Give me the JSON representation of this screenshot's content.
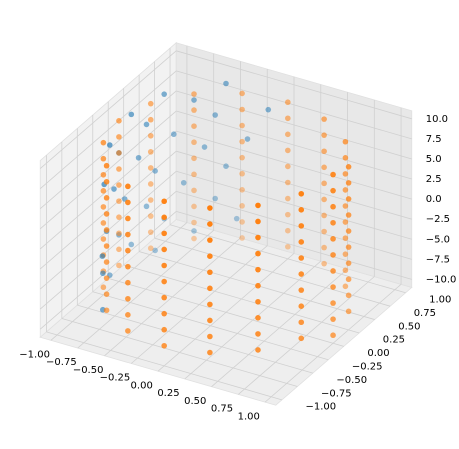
{
  "chart_data": {
    "type": "scatter3d",
    "xlim": [
      -1.1,
      1.1
    ],
    "ylim": [
      -1.1,
      1.1
    ],
    "zlim": [
      -11,
      11
    ],
    "xticks": [
      {
        "value": -1,
        "label": "−1.00"
      },
      {
        "value": -0.75,
        "label": "−0.75"
      },
      {
        "value": -0.5,
        "label": "−0.50"
      },
      {
        "value": -0.25,
        "label": "−0.25"
      },
      {
        "value": 0,
        "label": "0.00"
      },
      {
        "value": 0.25,
        "label": "0.25"
      },
      {
        "value": 0.5,
        "label": "0.50"
      },
      {
        "value": 0.75,
        "label": "0.75"
      },
      {
        "value": 1,
        "label": "1.00"
      }
    ],
    "yticks": [
      {
        "value": -1,
        "label": "−1.00"
      },
      {
        "value": -0.75,
        "label": "−0.75"
      },
      {
        "value": -0.5,
        "label": "−0.50"
      },
      {
        "value": -0.25,
        "label": "−0.25"
      },
      {
        "value": 0,
        "label": "0.00"
      },
      {
        "value": 0.25,
        "label": "0.25"
      },
      {
        "value": 0.5,
        "label": "0.50"
      },
      {
        "value": 0.75,
        "label": "0.75"
      },
      {
        "value": 1,
        "label": "1.00"
      }
    ],
    "zticks": [
      {
        "value": -10,
        "label": "−10.0"
      },
      {
        "value": -7.5,
        "label": "−7.5"
      },
      {
        "value": -5,
        "label": "−5.0"
      },
      {
        "value": -2.5,
        "label": "−2.5"
      },
      {
        "value": 0,
        "label": "0.0"
      },
      {
        "value": 2.5,
        "label": "2.5"
      },
      {
        "value": 5,
        "label": "5.0"
      },
      {
        "value": 7.5,
        "label": "7.5"
      },
      {
        "value": 10,
        "label": "10.0"
      }
    ],
    "grid": true,
    "series": [
      {
        "color": "#1f77b4",
        "x": [
          -0.866,
          -0.5,
          -0.985,
          -0.707,
          -0.985,
          -0.94,
          -0.574,
          -1,
          -0.819,
          -0.94,
          -0.966,
          -0.643,
          -0.996,
          -0.906,
          -0.5,
          -0.996,
          -0.766,
          -0.966,
          -0.94,
          -0.574,
          -1,
          -0.866,
          -0.906,
          -0.985,
          -0.707,
          -0.985,
          -0.906,
          -0.819,
          -0.342,
          -0.174,
          -0.866,
          -0.423
        ],
        "y": [
          0.5,
          0.866,
          0.174,
          0.707,
          -0.174,
          0.342,
          0.819,
          0,
          0.574,
          -0.342,
          0.259,
          0.766,
          -0.087,
          0.423,
          0.866,
          0.087,
          0.643,
          -0.259,
          0.342,
          0.819,
          0,
          0.5,
          -0.423,
          0.174,
          0.707,
          -0.174,
          0.423,
          -0.574,
          0.94,
          0.985,
          -0.5,
          0.906
        ],
        "z": [
          9.5,
          9.8,
          8.7,
          8,
          7.2,
          6.5,
          5.9,
          5,
          4.2,
          3.6,
          2.8,
          2,
          1.1,
          0.3,
          -0.5,
          -1.3,
          -2.1,
          -2.9,
          -3.7,
          -4.5,
          -5.2,
          -6,
          -6.8,
          -7.5,
          -8.3,
          -9,
          -9.6,
          -10,
          3,
          7,
          -4,
          -7
        ]
      },
      {
        "color": "#ff7f0e",
        "x": [
          1,
          0.924,
          0.707,
          0.383,
          0,
          -0.383,
          -0.707,
          -0.924,
          -1,
          -0.924,
          -0.707,
          -0.383,
          0,
          0.383,
          0.707,
          0.924,
          1,
          0.924,
          0.707,
          0.383,
          0,
          -0.383,
          -0.707,
          -0.924,
          -1,
          -0.924,
          -0.707,
          -0.383,
          0,
          0.383,
          0.707,
          0.924,
          1,
          0.924,
          0.707,
          0.383,
          0,
          -0.383,
          -0.707,
          -0.924,
          -1,
          -0.924,
          -0.707,
          -0.383,
          0,
          0.383,
          0.707,
          0.924,
          1,
          0.924,
          0.707,
          0.383,
          0,
          -0.383,
          -0.707,
          -0.924,
          -1,
          -0.924,
          -0.707,
          -0.383,
          0,
          0.383,
          0.707,
          0.924,
          1,
          0.924,
          0.707,
          0.383,
          0,
          -0.383,
          -0.707,
          -0.924,
          -1,
          -0.924,
          -0.707,
          -0.383,
          0,
          0.383,
          0.707,
          0.924,
          1,
          0.924,
          0.707,
          0.383,
          0,
          -0.383,
          -0.707,
          -0.924,
          -1,
          -0.924,
          -0.707,
          -0.383,
          0,
          0.383,
          0.707,
          0.924,
          1,
          0.924,
          0.707,
          0.383,
          0,
          -0.383,
          -0.707,
          -0.924,
          -1,
          -0.924,
          -0.707,
          -0.383,
          0,
          0.383,
          0.707,
          0.924,
          1,
          0.924,
          0.707,
          0.383,
          0,
          -0.383,
          -0.707,
          -0.924,
          -1,
          -0.924,
          -0.707,
          -0.383,
          0,
          0.383,
          0.707,
          0.924,
          1,
          0.924,
          0.707,
          0.383,
          0,
          -0.383,
          -0.707,
          -0.924,
          -1,
          -0.924,
          -0.707,
          -0.383,
          0,
          0.383,
          0.707,
          0.924,
          1,
          0.924,
          0.707,
          0.383,
          0,
          -0.383,
          -0.707,
          -0.924,
          -1,
          -0.924,
          -0.707,
          -0.383,
          0,
          0.383,
          0.707,
          0.924,
          1
        ],
        "y": [
          0,
          0.383,
          0.707,
          0.924,
          1,
          0.924,
          0.707,
          0.383,
          0,
          -0.383,
          -0.707,
          -0.924,
          -1,
          -0.924,
          -0.707,
          -0.383,
          0,
          0.383,
          0.707,
          0.924,
          1,
          0.924,
          0.707,
          0.383,
          0,
          -0.383,
          -0.707,
          -0.924,
          -1,
          -0.924,
          -0.707,
          -0.383,
          0,
          0.383,
          0.707,
          0.924,
          1,
          0.924,
          0.707,
          0.383,
          0,
          -0.383,
          -0.707,
          -0.924,
          -1,
          -0.924,
          -0.707,
          -0.383,
          0,
          0.383,
          0.707,
          0.924,
          1,
          0.924,
          0.707,
          0.383,
          0,
          -0.383,
          -0.707,
          -0.924,
          -1,
          -0.924,
          -0.707,
          -0.383,
          0,
          0.383,
          0.707,
          0.924,
          1,
          0.924,
          0.707,
          0.383,
          0,
          -0.383,
          -0.707,
          -0.924,
          -1,
          -0.924,
          -0.707,
          -0.383,
          0,
          0.383,
          0.707,
          0.924,
          1,
          0.924,
          0.707,
          0.383,
          0,
          -0.383,
          -0.707,
          -0.924,
          -1,
          -0.924,
          -0.707,
          -0.383,
          0,
          0.383,
          0.707,
          0.924,
          1,
          0.924,
          0.707,
          0.383,
          0,
          -0.383,
          -0.707,
          -0.924,
          -1,
          -0.924,
          -0.707,
          -0.383,
          0,
          0.383,
          0.707,
          0.924,
          1,
          0.924,
          0.707,
          0.383,
          0,
          -0.383,
          -0.707,
          -0.924,
          -1,
          -0.924,
          -0.707,
          -0.383,
          0,
          0.383,
          0.707,
          0.924,
          1,
          0.924,
          0.707,
          0.383,
          0,
          -0.383,
          -0.707,
          -0.924,
          -1,
          -0.924,
          -0.707,
          -0.383,
          0,
          0.383,
          0.707,
          0.924,
          1,
          0.924,
          0.707,
          0.383,
          0,
          -0.383,
          -0.707,
          -0.924,
          -1,
          -0.924,
          -0.707,
          -0.383,
          0
        ],
        "z": [
          -10,
          -9.875,
          -9.75,
          -9.625,
          -9.5,
          -9.375,
          -9.25,
          -9.125,
          -9,
          -8.875,
          -8.75,
          -8.625,
          -8.5,
          -8.375,
          -8.25,
          -8.125,
          -8,
          -7.875,
          -7.75,
          -7.625,
          -7.5,
          -7.375,
          -7.25,
          -7.125,
          -7,
          -6.875,
          -6.75,
          -6.625,
          -6.5,
          -6.375,
          -6.25,
          -6.125,
          -6,
          -5.875,
          -5.75,
          -5.625,
          -5.5,
          -5.375,
          -5.25,
          -5.125,
          -5,
          -4.875,
          -4.75,
          -4.625,
          -4.5,
          -4.375,
          -4.25,
          -4.125,
          -4,
          -3.875,
          -3.75,
          -3.625,
          -3.5,
          -3.375,
          -3.25,
          -3.125,
          -3,
          -2.875,
          -2.75,
          -2.625,
          -2.5,
          -2.375,
          -2.25,
          -2.125,
          -2,
          -1.875,
          -1.75,
          -1.625,
          -1.5,
          -1.375,
          -1.25,
          -1.125,
          -1,
          -0.875,
          -0.75,
          -0.625,
          -0.5,
          -0.375,
          -0.25,
          -0.125,
          0,
          0.125,
          0.25,
          0.375,
          0.5,
          0.625,
          0.75,
          0.875,
          1,
          1.125,
          1.25,
          1.375,
          1.5,
          1.625,
          1.75,
          1.875,
          2,
          2.125,
          2.25,
          2.375,
          2.5,
          2.625,
          2.75,
          2.875,
          3,
          3.125,
          3.25,
          3.375,
          3.5,
          3.625,
          3.75,
          3.875,
          4,
          4.125,
          4.25,
          4.375,
          4.5,
          4.625,
          4.75,
          4.875,
          5,
          5.125,
          5.25,
          5.375,
          5.5,
          5.625,
          5.75,
          5.875,
          6,
          6.125,
          6.25,
          6.375,
          6.5,
          6.625,
          6.75,
          6.875,
          7,
          7.125,
          7.25,
          7.375,
          7.5,
          7.625,
          7.75,
          7.875,
          8,
          8.125,
          8.25,
          8.375,
          8.5,
          8.625,
          8.75,
          8.875,
          9,
          9.125,
          9.25,
          9.375,
          9.5,
          9.625,
          9.75,
          9.875,
          10
        ]
      }
    ]
  }
}
